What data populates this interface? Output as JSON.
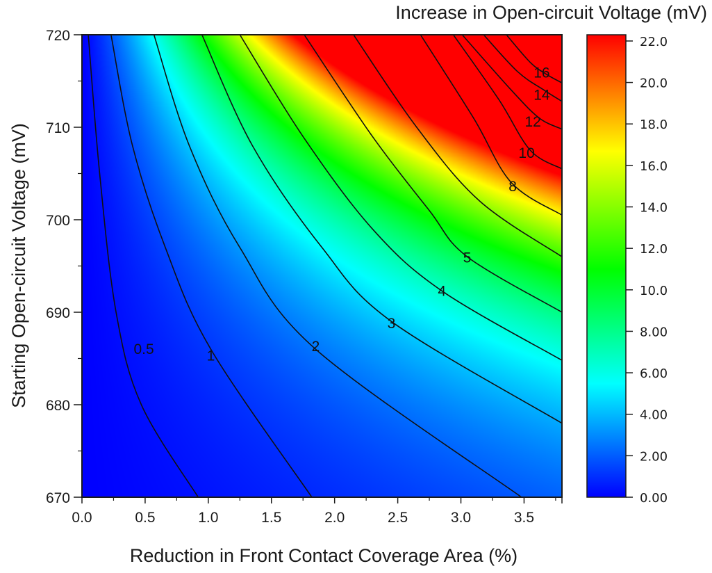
{
  "chart_data": {
    "type": "heatmap",
    "subtype": "filled-contour",
    "title": "Increase in Open-circuit Voltage (mV)",
    "xlabel": "Reduction in Front Contact Coverage Area (%)",
    "ylabel": "Starting Open-circuit Voltage (mV)",
    "xlim": [
      0.0,
      3.8
    ],
    "ylim": [
      670,
      720
    ],
    "x_ticks": [
      "0.0",
      "0.5",
      "1.0",
      "1.5",
      "2.0",
      "2.5",
      "3.0",
      "3.5"
    ],
    "x_tick_values": [
      0.0,
      0.5,
      1.0,
      1.5,
      2.0,
      2.5,
      3.0,
      3.5
    ],
    "y_ticks": [
      "670",
      "680",
      "690",
      "700",
      "710",
      "720"
    ],
    "y_tick_values": [
      670,
      680,
      690,
      700,
      710,
      720
    ],
    "grid": false,
    "colorbar": {
      "label": "Increase in Open-circuit Voltage (mV)",
      "range": [
        0,
        22.3
      ],
      "ticks": [
        "0.00",
        "2.00",
        "4.00",
        "6.00",
        "8.00",
        "10.0",
        "12.0",
        "14.0",
        "16.0",
        "18.0",
        "20.0",
        "22.0"
      ],
      "tick_values": [
        0,
        2,
        4,
        6,
        8,
        10,
        12,
        14,
        16,
        18,
        20,
        22
      ],
      "colormap_stops": [
        {
          "value": 0,
          "color": "#0000ff"
        },
        {
          "value": 5.5,
          "color": "#00ffff"
        },
        {
          "value": 11,
          "color": "#00ff00"
        },
        {
          "value": 16.7,
          "color": "#ffff00"
        },
        {
          "value": 22.3,
          "color": "#ff0000"
        }
      ]
    },
    "contour_levels": [
      0.5,
      1,
      2,
      3,
      4,
      5,
      6,
      8,
      10,
      12,
      14,
      16
    ],
    "contours": [
      {
        "level": 0.5,
        "label": "0.5",
        "points": [
          [
            0.05,
            720
          ],
          [
            0.14,
            705
          ],
          [
            0.27,
            690
          ],
          [
            0.47,
            680
          ],
          [
            0.92,
            670
          ]
        ]
      },
      {
        "level": 1,
        "label": "1",
        "points": [
          [
            0.23,
            720
          ],
          [
            0.4,
            708
          ],
          [
            0.66,
            697
          ],
          [
            1.02,
            686
          ],
          [
            1.82,
            670
          ]
        ]
      },
      {
        "level": 2,
        "label": "2",
        "points": [
          [
            0.57,
            720
          ],
          [
            0.85,
            708
          ],
          [
            1.25,
            697
          ],
          [
            1.85,
            686
          ],
          [
            3.48,
            670
          ]
        ]
      },
      {
        "level": 3,
        "label": "3",
        "points": [
          [
            0.95,
            720
          ],
          [
            1.35,
            708
          ],
          [
            1.9,
            697
          ],
          [
            2.45,
            689
          ],
          [
            3.8,
            678
          ]
        ]
      },
      {
        "level": 4,
        "label": "4",
        "points": [
          [
            1.25,
            720
          ],
          [
            1.75,
            709
          ],
          [
            2.3,
            699
          ],
          [
            2.85,
            692.3
          ],
          [
            3.8,
            684.8
          ]
        ]
      },
      {
        "level": 5,
        "label": "5",
        "points": [
          [
            1.76,
            720
          ],
          [
            2.3,
            709
          ],
          [
            2.75,
            701
          ],
          [
            3.05,
            696
          ],
          [
            3.8,
            690
          ]
        ]
      },
      {
        "level": 6,
        "label": "",
        "points": [
          [
            2.15,
            720
          ],
          [
            2.65,
            710
          ],
          [
            3.15,
            702
          ],
          [
            3.8,
            696
          ]
        ]
      },
      {
        "level": 8,
        "label": "8",
        "points": [
          [
            2.68,
            720
          ],
          [
            3.1,
            711
          ],
          [
            3.4,
            704
          ],
          [
            3.8,
            700.5
          ]
        ]
      },
      {
        "level": 10,
        "label": "10",
        "points": [
          [
            2.94,
            720
          ],
          [
            3.3,
            713
          ],
          [
            3.55,
            707.5
          ],
          [
            3.8,
            705.5
          ]
        ]
      },
      {
        "level": 12,
        "label": "12",
        "points": [
          [
            3.01,
            720
          ],
          [
            3.4,
            714
          ],
          [
            3.62,
            711
          ],
          [
            3.8,
            709.8
          ]
        ]
      },
      {
        "level": 14,
        "label": "14",
        "points": [
          [
            3.18,
            720
          ],
          [
            3.45,
            716
          ],
          [
            3.66,
            714
          ],
          [
            3.8,
            712.8
          ]
        ]
      },
      {
        "level": 16,
        "label": "16",
        "points": [
          [
            3.36,
            720
          ],
          [
            3.55,
            717
          ],
          [
            3.68,
            715.7
          ],
          [
            3.8,
            714.8
          ]
        ]
      }
    ],
    "contour_label_positions": [
      {
        "label": "0.5",
        "x": 0.49,
        "y": 686.0
      },
      {
        "label": "1",
        "x": 1.02,
        "y": 685.3
      },
      {
        "label": "2",
        "x": 1.85,
        "y": 686.3
      },
      {
        "label": "3",
        "x": 2.45,
        "y": 688.8
      },
      {
        "label": "4",
        "x": 2.85,
        "y": 692.3
      },
      {
        "label": "5",
        "x": 3.05,
        "y": 695.9
      },
      {
        "label": "8",
        "x": 3.41,
        "y": 703.6
      },
      {
        "label": "10",
        "x": 3.52,
        "y": 707.2
      },
      {
        "label": "12",
        "x": 3.57,
        "y": 710.6
      },
      {
        "label": "14",
        "x": 3.64,
        "y": 713.5
      },
      {
        "label": "16",
        "x": 3.64,
        "y": 715.9
      }
    ],
    "value_range_observed": {
      "min": 0,
      "max": 22,
      "max_location": "top-right (x=3.8, y=720)"
    }
  }
}
